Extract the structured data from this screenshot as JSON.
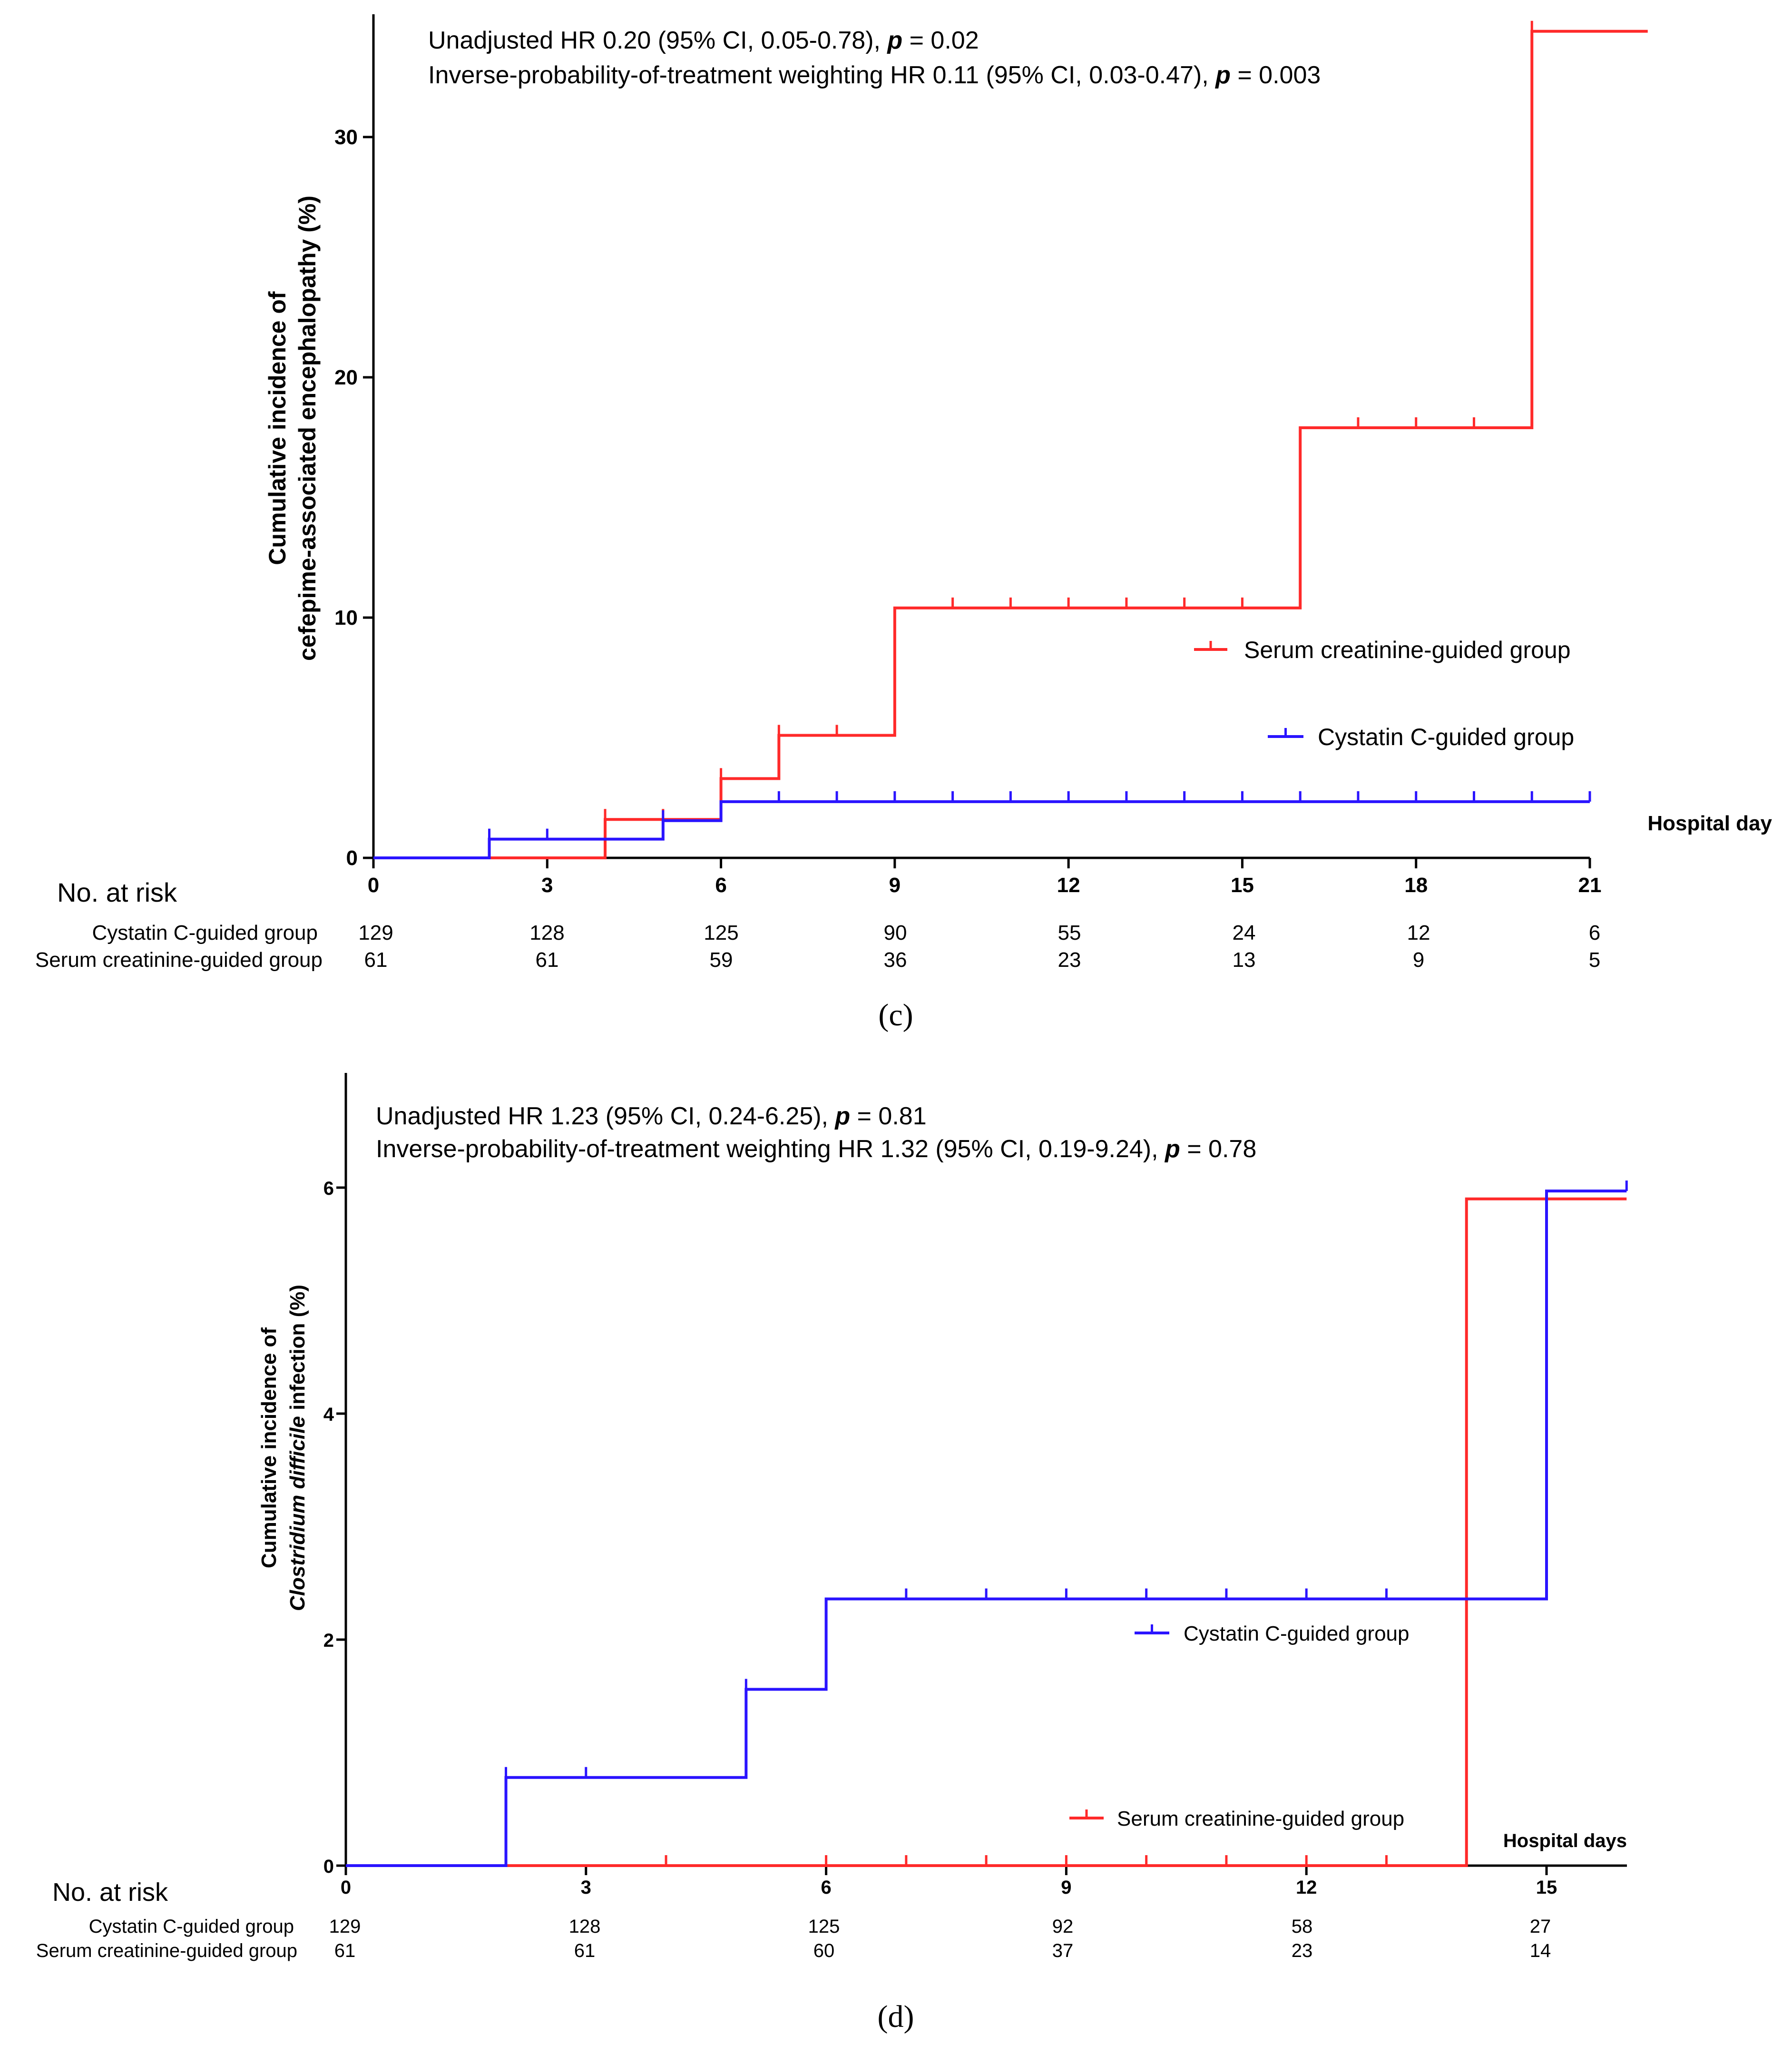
{
  "colors": {
    "serum": "#ff2a2a",
    "cystatin": "#2a14ff",
    "axis": "#000000"
  },
  "chart_data": [
    {
      "type": "line",
      "step": true,
      "panel_label": "(c)",
      "annotation_lines": [
        {
          "prefix": "Unadjusted HR 0.20 (95% CI, 0.05-0.78), ",
          "p": "p",
          "suffix": " = 0.02"
        },
        {
          "prefix": "Inverse-probability-of-treatment weighting HR 0.11 (95% CI, 0.03-0.47), ",
          "p": "p",
          "suffix": " = 0.003"
        }
      ],
      "ylabel_line1": "Cumulative incidence of",
      "ylabel_line2": "cefepime-associated encephalopathy (%)",
      "xlabel": "Hospital day",
      "xlim": [
        0,
        21
      ],
      "ylim": [
        0,
        35
      ],
      "xticks": [
        "0",
        "3",
        "6",
        "9",
        "12",
        "15",
        "18",
        "21"
      ],
      "yticks": [
        "0",
        "10",
        "20",
        "30"
      ],
      "series": [
        {
          "name": "Serum creatinine-guided group",
          "color_key": "serum",
          "steps": [
            [
              0,
              0
            ],
            [
              4,
              1.6
            ],
            [
              6,
              3.3
            ],
            [
              7,
              5.1
            ],
            [
              9,
              10.4
            ],
            [
              16,
              17.9
            ],
            [
              20,
              34.4
            ],
            [
              22,
              34.4
            ]
          ],
          "censor": [
            4,
            5,
            6,
            7,
            8,
            10,
            11,
            12,
            13,
            14,
            15,
            17,
            18,
            19,
            20
          ]
        },
        {
          "name": "Cystatin C-guided group",
          "color_key": "cystatin",
          "steps": [
            [
              0,
              0
            ],
            [
              2,
              0.78
            ],
            [
              5,
              1.55
            ],
            [
              6,
              2.34
            ],
            [
              21,
              2.34
            ]
          ],
          "censor": [
            2,
            3,
            5,
            7,
            8,
            9,
            10,
            11,
            12,
            13,
            14,
            15,
            16,
            17,
            18,
            19,
            20,
            21
          ]
        }
      ],
      "legend": [
        {
          "label": "Serum creatinine-guided group",
          "color_key": "serum"
        },
        {
          "label": "Cystatin C-guided group",
          "color_key": "cystatin"
        }
      ],
      "risk_table": {
        "title": "No. at risk",
        "rows": [
          {
            "label": "Cystatin C-guided group",
            "values": [
              "129",
              "128",
              "125",
              "90",
              "55",
              "24",
              "12",
              "6"
            ]
          },
          {
            "label": "Serum creatinine-guided group",
            "values": [
              "61",
              "61",
              "59",
              "36",
              "23",
              "13",
              "9",
              "5"
            ]
          }
        ]
      }
    },
    {
      "type": "line",
      "step": true,
      "panel_label": "(d)",
      "annotation_lines": [
        {
          "prefix": "Unadjusted HR 1.23 (95% CI, 0.24-6.25), ",
          "p": "p",
          "suffix": " = 0.81"
        },
        {
          "prefix": "Inverse-probability-of-treatment weighting HR 1.32 (95% CI, 0.19-9.24), ",
          "p": "p",
          "suffix": " = 0.78"
        }
      ],
      "ylabel_line1": "Cumulative incidence of",
      "ylabel_line2_italic": "Clostridium difficile",
      "ylabel_line2_rest": " infection (%)",
      "xlabel": "Hospital days",
      "xlim": [
        0,
        16
      ],
      "ylim": [
        0,
        7
      ],
      "xticks": [
        "0",
        "3",
        "6",
        "9",
        "12",
        "15"
      ],
      "yticks": [
        "0",
        "2",
        "4",
        "6"
      ],
      "series": [
        {
          "name": "Serum creatinine-guided group",
          "color_key": "serum",
          "steps": [
            [
              0,
              0
            ],
            [
              14,
              5.9
            ],
            [
              16,
              5.9
            ]
          ],
          "censor": [
            4,
            6,
            7,
            8,
            9,
            10,
            11,
            12,
            13
          ]
        },
        {
          "name": "Cystatin C-guided group",
          "color_key": "cystatin",
          "steps": [
            [
              0,
              0
            ],
            [
              2,
              0.78
            ],
            [
              5,
              1.56
            ],
            [
              6,
              2.36
            ],
            [
              15,
              5.97
            ],
            [
              16,
              5.97
            ]
          ],
          "censor": [
            2,
            3,
            5,
            7,
            8,
            9,
            10,
            11,
            12,
            13,
            16
          ]
        }
      ],
      "legend": [
        {
          "label": "Cystatin C-guided group",
          "color_key": "cystatin"
        },
        {
          "label": "Serum creatinine-guided group",
          "color_key": "serum"
        }
      ],
      "risk_table": {
        "title": "No. at risk",
        "rows": [
          {
            "label": "Cystatin C-guided group",
            "values": [
              "129",
              "128",
              "125",
              "92",
              "58",
              "27"
            ]
          },
          {
            "label": "Serum creatinine-guided group",
            "values": [
              "61",
              "61",
              "60",
              "37",
              "23",
              "14"
            ]
          }
        ]
      }
    }
  ]
}
